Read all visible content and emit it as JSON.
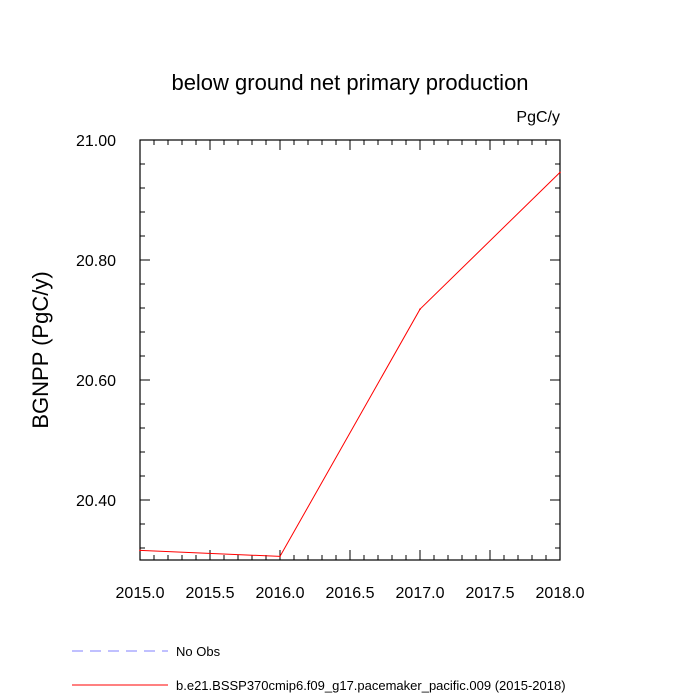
{
  "chart_data": {
    "type": "line",
    "title": "below ground net primary production",
    "units": "PgC/y",
    "xlabel": "",
    "ylabel": "BGNPP  (PgC/y)",
    "xlim": [
      2015.0,
      2018.0
    ],
    "ylim": [
      20.3,
      21.0
    ],
    "x_ticks": [
      2015.0,
      2015.5,
      2016.0,
      2016.5,
      2017.0,
      2017.5,
      2018.0
    ],
    "x_tick_labels": [
      "2015.0",
      "2015.5",
      "2016.0",
      "2016.5",
      "2017.0",
      "2017.5",
      "2018.0"
    ],
    "y_ticks": [
      20.4,
      20.6,
      20.8,
      21.0
    ],
    "y_tick_labels": [
      "20.40",
      "20.60",
      "20.80",
      "21.00"
    ],
    "grid": false,
    "series": [
      {
        "name": "b.e21.BSSP370cmip6.f09_g17.pacemaker_pacific.009 (2015-2018)",
        "color": "#ff0000",
        "style": "solid",
        "x": [
          2015.0,
          2016.0,
          2017.0,
          2018.0
        ],
        "values": [
          20.316,
          20.306,
          20.718,
          20.946
        ]
      }
    ],
    "legend": [
      {
        "label": "No Obs",
        "color": "#8080ff",
        "style": "dashed"
      },
      {
        "label": "b.e21.BSSP370cmip6.f09_g17.pacemaker_pacific.009 (2015-2018)",
        "color": "#ff0000",
        "style": "solid"
      }
    ]
  }
}
